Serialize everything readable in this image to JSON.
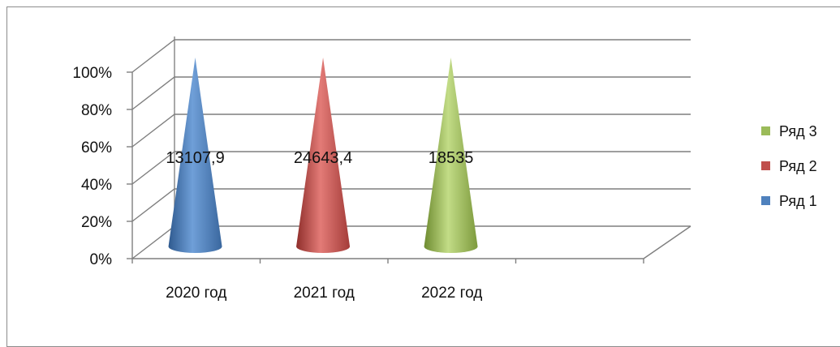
{
  "chart_data": {
    "type": "bar",
    "bar_shape": "3d-cone",
    "stacking": "percent",
    "categories": [
      "2020 год",
      "2021 год",
      "2022 год",
      ""
    ],
    "series": [
      {
        "name": "Ряд 1",
        "color": "#4f81bd",
        "values": [
          13107.9,
          24643.4,
          18535,
          0
        ],
        "data_labels": [
          "13107,9",
          "24643,4",
          "18535",
          ""
        ]
      },
      {
        "name": "Ряд 2",
        "color": "#c0504d",
        "values": [
          0,
          0,
          0,
          0
        ],
        "data_labels": [
          "",
          "",
          "",
          ""
        ]
      },
      {
        "name": "Ряд 3",
        "color": "#9bbb59",
        "values": [
          0,
          0,
          0,
          0
        ],
        "data_labels": [
          "",
          "",
          "",
          ""
        ]
      }
    ],
    "bar_colors": [
      "#4f81bd",
      "#c0504d",
      "#9bbb59"
    ],
    "y_ticks": [
      "0%",
      "20%",
      "40%",
      "60%",
      "80%",
      "100%"
    ],
    "ylim": [
      0,
      100
    ],
    "grid": true,
    "legend_position": "right",
    "legend_order": [
      "Ряд 3",
      "Ряд 2",
      "Ряд 1"
    ]
  }
}
